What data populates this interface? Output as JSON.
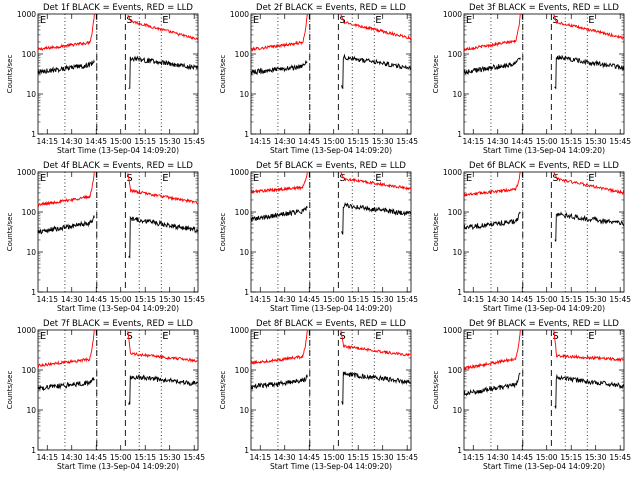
{
  "figure": {
    "background": "#ffffff",
    "panel_colors": {
      "events": "#000000",
      "lld": "#ff0000",
      "axis": "#000000"
    }
  },
  "chart_data": [
    {
      "type": "line",
      "title": "Det 1f BLACK = Events, RED = LLD",
      "xlabel": "Start Time (13-Sep-04 14:09:20)",
      "ylabel": "Counts/sec",
      "y_scale": "log",
      "ylim": [
        1,
        1000
      ],
      "y_ticks": [
        "1",
        "10",
        "100",
        "1000"
      ],
      "x_tick_labels": [
        "14:15",
        "14:30",
        "14:45",
        "15:00",
        "15:15",
        "15:30",
        "15:45"
      ],
      "x_tick_minutes": [
        5.67,
        20.67,
        35.67,
        50.67,
        65.67,
        80.67,
        95.67
      ],
      "x_range_minutes": [
        0,
        98
      ],
      "markers": [
        {
          "label": "E",
          "minutes": 0.5,
          "style": "none"
        },
        {
          "label": "E",
          "minutes": 75.5,
          "style": "dotted"
        },
        {
          "label": "S",
          "minutes": 53.5,
          "style": "none"
        }
      ],
      "dotted_lines_minutes": [
        16.5,
        36.0,
        62.0,
        75.5
      ],
      "dashed_lines_minutes": [
        36.0,
        53.5
      ],
      "series": [
        {
          "name": "LLD",
          "color": "#ff0000",
          "segments": [
            {
              "x_start": 0,
              "x_end": 34.5,
              "y_start": 130,
              "y_end": 200,
              "rise_to": 1000
            },
            {
              "x_start": 55,
              "x_end": 98,
              "y_start": 700,
              "y_end": 230,
              "fall_from": 1000
            }
          ]
        },
        {
          "name": "Events",
          "color": "#000000",
          "segments": [
            {
              "x_start": 0,
              "x_end": 34.5,
              "y_start": 35,
              "y_end": 55,
              "rise_to": 70
            },
            {
              "x_start": 55.5,
              "x_end": 98,
              "y_start": 80,
              "y_end": 45,
              "dip_to": 15
            }
          ]
        }
      ]
    },
    {
      "type": "line",
      "title": "Det 2f BLACK = Events, RED = LLD",
      "xlabel": "Start Time (13-Sep-04 14:09:20)",
      "ylabel": "Counts/sec",
      "y_scale": "log",
      "ylim": [
        1,
        1000
      ],
      "y_ticks": [
        "1",
        "10",
        "100",
        "1000"
      ],
      "x_tick_labels": [
        "14:15",
        "14:30",
        "14:45",
        "15:00",
        "15:15",
        "15:30",
        "15:45"
      ],
      "x_tick_minutes": [
        5.67,
        20.67,
        35.67,
        50.67,
        65.67,
        80.67,
        95.67
      ],
      "x_range_minutes": [
        0,
        98
      ],
      "markers": [
        {
          "label": "E",
          "minutes": 0.5,
          "style": "none"
        },
        {
          "label": "E",
          "minutes": 75.5,
          "style": "dotted"
        },
        {
          "label": "S",
          "minutes": 53.5,
          "style": "none"
        }
      ],
      "dotted_lines_minutes": [
        16.5,
        36.0,
        62.0,
        75.5
      ],
      "dashed_lines_minutes": [
        36.0,
        53.5
      ],
      "series": [
        {
          "name": "LLD",
          "color": "#ff0000",
          "segments": [
            {
              "x_start": 0,
              "x_end": 34.5,
              "y_start": 130,
              "y_end": 200,
              "rise_to": 1000
            },
            {
              "x_start": 55,
              "x_end": 98,
              "y_start": 650,
              "y_end": 250,
              "fall_from": 1000
            }
          ]
        },
        {
          "name": "Events",
          "color": "#000000",
          "segments": [
            {
              "x_start": 0,
              "x_end": 34.5,
              "y_start": 35,
              "y_end": 50,
              "rise_to": 70
            },
            {
              "x_start": 55.5,
              "x_end": 98,
              "y_start": 85,
              "y_end": 45,
              "dip_to": 15
            }
          ]
        }
      ]
    },
    {
      "type": "line",
      "title": "Det 3f BLACK = Events, RED = LLD",
      "xlabel": "Start Time (13-Sep-04 14:09:20)",
      "ylabel": "Counts/sec",
      "y_scale": "log",
      "ylim": [
        1,
        1000
      ],
      "y_ticks": [
        "1",
        "10",
        "100",
        "1000"
      ],
      "x_tick_labels": [
        "14:15",
        "14:30",
        "14:45",
        "15:00",
        "15:15",
        "15:30",
        "15:45"
      ],
      "x_tick_minutes": [
        5.67,
        20.67,
        35.67,
        50.67,
        65.67,
        80.67,
        95.67
      ],
      "x_range_minutes": [
        0,
        98
      ],
      "markers": [
        {
          "label": "E",
          "minutes": 0.5,
          "style": "none"
        },
        {
          "label": "E",
          "minutes": 75.5,
          "style": "dotted"
        },
        {
          "label": "S",
          "minutes": 53.5,
          "style": "none"
        }
      ],
      "dotted_lines_minutes": [
        16.5,
        36.0,
        62.0,
        75.5
      ],
      "dashed_lines_minutes": [
        36.0,
        53.5
      ],
      "series": [
        {
          "name": "LLD",
          "color": "#ff0000",
          "segments": [
            {
              "x_start": 0,
              "x_end": 34.5,
              "y_start": 130,
              "y_end": 220,
              "rise_to": 1000
            },
            {
              "x_start": 55,
              "x_end": 98,
              "y_start": 650,
              "y_end": 250,
              "fall_from": 1000
            }
          ]
        },
        {
          "name": "Events",
          "color": "#000000",
          "segments": [
            {
              "x_start": 0,
              "x_end": 34.5,
              "y_start": 35,
              "y_end": 60,
              "rise_to": 90
            },
            {
              "x_start": 55.5,
              "x_end": 98,
              "y_start": 85,
              "y_end": 45,
              "dip_to": 15
            }
          ]
        }
      ]
    },
    {
      "type": "line",
      "title": "Det 4f BLACK = Events, RED = LLD",
      "xlabel": "Start Time (13-Sep-04 14:09:20)",
      "ylabel": "Counts/sec",
      "y_scale": "log",
      "ylim": [
        1,
        1000
      ],
      "y_ticks": [
        "1",
        "10",
        "100",
        "1000"
      ],
      "x_tick_labels": [
        "14:15",
        "14:30",
        "14:45",
        "15:00",
        "15:15",
        "15:30",
        "15:45"
      ],
      "x_tick_minutes": [
        5.67,
        20.67,
        35.67,
        50.67,
        65.67,
        80.67,
        95.67
      ],
      "x_range_minutes": [
        0,
        98
      ],
      "markers": [
        {
          "label": "E",
          "minutes": 0.5,
          "style": "none"
        },
        {
          "label": "E",
          "minutes": 75.5,
          "style": "dotted"
        },
        {
          "label": "S",
          "minutes": 53.5,
          "style": "none"
        }
      ],
      "dotted_lines_minutes": [
        16.5,
        36.0,
        62.0,
        75.5
      ],
      "dashed_lines_minutes": [
        36.0,
        53.5
      ],
      "series": [
        {
          "name": "LLD",
          "color": "#ff0000",
          "segments": [
            {
              "x_start": 0,
              "x_end": 34.5,
              "y_start": 150,
              "y_end": 250,
              "rise_to": 1000
            },
            {
              "x_start": 55,
              "x_end": 98,
              "y_start": 350,
              "y_end": 170,
              "fall_from": 1000
            }
          ]
        },
        {
          "name": "Events",
          "color": "#000000",
          "segments": [
            {
              "x_start": 0,
              "x_end": 34.5,
              "y_start": 32,
              "y_end": 55,
              "rise_to": 80
            },
            {
              "x_start": 55.5,
              "x_end": 98,
              "y_start": 70,
              "y_end": 35,
              "dip_to": 8
            }
          ]
        }
      ]
    },
    {
      "type": "line",
      "title": "Det 5f BLACK = Events, RED = LLD",
      "xlabel": "Start Time (13-Sep-04 14:09:20)",
      "ylabel": "Counts/sec",
      "y_scale": "log",
      "ylim": [
        1,
        1000
      ],
      "y_ticks": [
        "1",
        "10",
        "100",
        "1000"
      ],
      "x_tick_labels": [
        "14:15",
        "14:30",
        "14:45",
        "15:00",
        "15:15",
        "15:30",
        "15:45"
      ],
      "x_tick_minutes": [
        5.67,
        20.67,
        35.67,
        50.67,
        65.67,
        80.67,
        95.67
      ],
      "x_range_minutes": [
        0,
        98
      ],
      "markers": [
        {
          "label": "E",
          "minutes": 0.5,
          "style": "none"
        },
        {
          "label": "E",
          "minutes": 75.5,
          "style": "dotted"
        },
        {
          "label": "S",
          "minutes": 53.5,
          "style": "none"
        }
      ],
      "dotted_lines_minutes": [
        16.5,
        36.0,
        62.0,
        75.5
      ],
      "dashed_lines_minutes": [
        36.0,
        53.5
      ],
      "series": [
        {
          "name": "LLD",
          "color": "#ff0000",
          "segments": [
            {
              "x_start": 0,
              "x_end": 34.5,
              "y_start": 320,
              "y_end": 420,
              "rise_to": 1000
            },
            {
              "x_start": 55,
              "x_end": 98,
              "y_start": 700,
              "y_end": 380,
              "fall_from": 1000
            }
          ]
        },
        {
          "name": "Events",
          "color": "#000000",
          "segments": [
            {
              "x_start": 0,
              "x_end": 34.5,
              "y_start": 65,
              "y_end": 110,
              "rise_to": 140
            },
            {
              "x_start": 55.5,
              "x_end": 98,
              "y_start": 150,
              "y_end": 90,
              "dip_to": 30
            }
          ]
        }
      ]
    },
    {
      "type": "line",
      "title": "Det 6f BLACK = Events, RED = LLD",
      "xlabel": "Start Time (13-Sep-04 14:09:20)",
      "ylabel": "Counts/sec",
      "y_scale": "log",
      "ylim": [
        1,
        1000
      ],
      "y_ticks": [
        "1",
        "10",
        "100",
        "1000"
      ],
      "x_tick_labels": [
        "14:15",
        "14:30",
        "14:45",
        "15:00",
        "15:15",
        "15:30",
        "15:45"
      ],
      "x_tick_minutes": [
        5.67,
        20.67,
        35.67,
        50.67,
        65.67,
        80.67,
        95.67
      ],
      "x_range_minutes": [
        0,
        98
      ],
      "markers": [
        {
          "label": "E",
          "minutes": 0.5,
          "style": "none"
        },
        {
          "label": "E",
          "minutes": 75.5,
          "style": "dotted"
        },
        {
          "label": "S",
          "minutes": 53.5,
          "style": "none"
        }
      ],
      "dotted_lines_minutes": [
        16.5,
        36.0,
        62.0,
        75.5
      ],
      "dashed_lines_minutes": [
        36.0,
        53.5
      ],
      "series": [
        {
          "name": "LLD",
          "color": "#ff0000",
          "segments": [
            {
              "x_start": 0,
              "x_end": 34.5,
              "y_start": 270,
              "y_end": 380,
              "rise_to": 1000
            },
            {
              "x_start": 55,
              "x_end": 98,
              "y_start": 700,
              "y_end": 300,
              "fall_from": 1000
            }
          ]
        },
        {
          "name": "Events",
          "color": "#000000",
          "segments": [
            {
              "x_start": 0,
              "x_end": 34.5,
              "y_start": 40,
              "y_end": 60,
              "rise_to": 110
            },
            {
              "x_start": 55.5,
              "x_end": 98,
              "y_start": 90,
              "y_end": 50,
              "dip_to": 20
            }
          ]
        }
      ]
    },
    {
      "type": "line",
      "title": "Det 7f BLACK = Events, RED = LLD",
      "xlabel": "Start Time (13-Sep-04 14:09:20)",
      "ylabel": "Counts/sec",
      "y_scale": "log",
      "ylim": [
        1,
        1000
      ],
      "y_ticks": [
        "1",
        "10",
        "100",
        "1000"
      ],
      "x_tick_labels": [
        "14:15",
        "14:30",
        "14:45",
        "15:00",
        "15:15",
        "15:30",
        "15:45"
      ],
      "x_tick_minutes": [
        5.67,
        20.67,
        35.67,
        50.67,
        65.67,
        80.67,
        95.67
      ],
      "x_range_minutes": [
        0,
        98
      ],
      "markers": [
        {
          "label": "E",
          "minutes": 0.5,
          "style": "none"
        },
        {
          "label": "E",
          "minutes": 75.5,
          "style": "dotted"
        },
        {
          "label": "S",
          "minutes": 53.5,
          "style": "none"
        }
      ],
      "dotted_lines_minutes": [
        16.5,
        36.0,
        62.0,
        75.5
      ],
      "dashed_lines_minutes": [
        36.0,
        53.5
      ],
      "series": [
        {
          "name": "LLD",
          "color": "#ff0000",
          "segments": [
            {
              "x_start": 0,
              "x_end": 34.5,
              "y_start": 130,
              "y_end": 190,
              "rise_to": 1000
            },
            {
              "x_start": 55,
              "x_end": 98,
              "y_start": 260,
              "y_end": 170,
              "fall_from": 1000
            }
          ]
        },
        {
          "name": "Events",
          "color": "#000000",
          "segments": [
            {
              "x_start": 0,
              "x_end": 34.5,
              "y_start": 35,
              "y_end": 50,
              "rise_to": 65
            },
            {
              "x_start": 55.5,
              "x_end": 98,
              "y_start": 70,
              "y_end": 45,
              "dip_to": 15
            }
          ]
        }
      ]
    },
    {
      "type": "line",
      "title": "Det 8f BLACK = Events, RED = LLD",
      "xlabel": "Start Time (13-Sep-04 14:09:20)",
      "ylabel": "Counts/sec",
      "y_scale": "log",
      "ylim": [
        1,
        1000
      ],
      "y_ticks": [
        "1",
        "10",
        "100",
        "1000"
      ],
      "x_tick_labels": [
        "14:15",
        "14:30",
        "14:45",
        "15:00",
        "15:15",
        "15:30",
        "15:45"
      ],
      "x_tick_minutes": [
        5.67,
        20.67,
        35.67,
        50.67,
        65.67,
        80.67,
        95.67
      ],
      "x_range_minutes": [
        0,
        98
      ],
      "markers": [
        {
          "label": "E",
          "minutes": 0.5,
          "style": "none"
        },
        {
          "label": "E",
          "minutes": 75.5,
          "style": "dotted"
        },
        {
          "label": "S",
          "minutes": 53.5,
          "style": "none"
        }
      ],
      "dotted_lines_minutes": [
        16.5,
        36.0,
        62.0,
        75.5
      ],
      "dashed_lines_minutes": [
        36.0,
        53.5
      ],
      "series": [
        {
          "name": "LLD",
          "color": "#ff0000",
          "segments": [
            {
              "x_start": 0,
              "x_end": 34.5,
              "y_start": 150,
              "y_end": 220,
              "rise_to": 1000
            },
            {
              "x_start": 55,
              "x_end": 98,
              "y_start": 400,
              "y_end": 230,
              "fall_from": 1000
            }
          ]
        },
        {
          "name": "Events",
          "color": "#000000",
          "segments": [
            {
              "x_start": 0,
              "x_end": 34.5,
              "y_start": 38,
              "y_end": 55,
              "rise_to": 70
            },
            {
              "x_start": 55.5,
              "x_end": 98,
              "y_start": 80,
              "y_end": 50,
              "dip_to": 15
            }
          ]
        }
      ]
    },
    {
      "type": "line",
      "title": "Det 9f BLACK = Events, RED = LLD",
      "xlabel": "Start Time (13-Sep-04 14:09:20)",
      "ylabel": "Counts/sec",
      "y_scale": "log",
      "ylim": [
        1,
        1000
      ],
      "y_ticks": [
        "1",
        "10",
        "100",
        "1000"
      ],
      "x_tick_labels": [
        "14:15",
        "14:30",
        "14:45",
        "15:00",
        "15:15",
        "15:30",
        "15:45"
      ],
      "x_tick_minutes": [
        5.67,
        20.67,
        35.67,
        50.67,
        65.67,
        80.67,
        95.67
      ],
      "x_range_minutes": [
        0,
        98
      ],
      "markers": [
        {
          "label": "E",
          "minutes": 0.5,
          "style": "none"
        },
        {
          "label": "E",
          "minutes": 75.5,
          "style": "dotted"
        },
        {
          "label": "S",
          "minutes": 53.5,
          "style": "none"
        }
      ],
      "dotted_lines_minutes": [
        16.5,
        36.0,
        62.0,
        75.5
      ],
      "dashed_lines_minutes": [
        36.0,
        53.5
      ],
      "series": [
        {
          "name": "LLD",
          "color": "#ff0000",
          "segments": [
            {
              "x_start": 0,
              "x_end": 34.5,
              "y_start": 110,
              "y_end": 200,
              "rise_to": 1000
            },
            {
              "x_start": 55,
              "x_end": 98,
              "y_start": 230,
              "y_end": 180,
              "fall_from": 1000
            }
          ]
        },
        {
          "name": "Events",
          "color": "#000000",
          "segments": [
            {
              "x_start": 0,
              "x_end": 34.5,
              "y_start": 25,
              "y_end": 45,
              "rise_to": 90
            },
            {
              "x_start": 55.5,
              "x_end": 98,
              "y_start": 65,
              "y_end": 40,
              "dip_to": 12
            }
          ]
        }
      ]
    }
  ]
}
